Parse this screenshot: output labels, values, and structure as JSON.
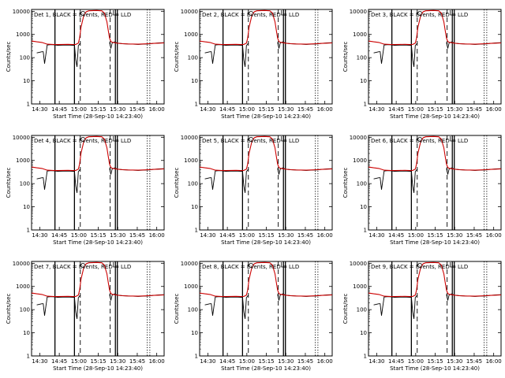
{
  "figure": {
    "xlabel": "Start Time (28-Sep-10 14:23:40)",
    "ylabel": "Counts/sec",
    "xticks": [
      "14:30",
      "14:45",
      "15:00",
      "15:15",
      "15:30",
      "15:45",
      "16:00"
    ],
    "yticks": [
      "1",
      "10",
      "100",
      "1000",
      "10000"
    ],
    "colors": {
      "events": "#000000",
      "lld": "#cc0000"
    }
  },
  "chart_data": {
    "type": "line",
    "y_scale": "log",
    "ylim": [
      1,
      12000
    ],
    "x_unit": "minutes since 14:23:40",
    "xlim": [
      0,
      102
    ],
    "xticks_minutes": [
      6.33,
      21.33,
      36.33,
      51.33,
      66.33,
      81.33,
      96.33
    ],
    "markers": {
      "solid": [
        18,
        33,
        64.5,
        66
      ],
      "dashed": [
        37.5,
        60.5
      ],
      "dotted": [
        89,
        91
      ]
    },
    "series": [
      {
        "name": "BLACK = Events",
        "color": "#000000",
        "x": [
          0,
          2,
          4,
          6,
          8,
          9,
          10,
          12,
          14,
          16,
          18,
          20,
          24,
          28,
          32,
          33,
          34,
          35,
          36,
          37.5,
          41,
          46,
          52,
          56,
          58,
          60,
          61,
          62,
          64,
          66,
          70,
          74,
          78,
          82,
          86,
          90,
          94,
          98,
          102
        ],
        "y": [
          null,
          null,
          160,
          170,
          180,
          180,
          55,
          350,
          360,
          360,
          355,
          340,
          345,
          350,
          340,
          340,
          80,
          40,
          330,
          420,
          null,
          null,
          null,
          null,
          null,
          460,
          250,
          420,
          480,
          420,
          400,
          390,
          380,
          370,
          380,
          390,
          410,
          430,
          440
        ]
      },
      {
        "name": "RED = LLD",
        "color": "#cc0000",
        "x": [
          0,
          4,
          8,
          12,
          16,
          20,
          24,
          28,
          32,
          34,
          36,
          37,
          38,
          40,
          42,
          44,
          50,
          54,
          56,
          58,
          59,
          60,
          61,
          62,
          64,
          66,
          70,
          74,
          78,
          82,
          86,
          90,
          94,
          98,
          102
        ],
        "y": [
          520,
          480,
          450,
          380,
          370,
          365,
          370,
          375,
          365,
          370,
          420,
          700,
          2000,
          6000,
          9500,
          10500,
          10800,
          10500,
          8500,
          3500,
          1500,
          700,
          500,
          460,
          440,
          420,
          400,
          390,
          385,
          380,
          390,
          400,
          410,
          420,
          430
        ]
      }
    ],
    "panels": [
      {
        "title": "Det 1, BLACK = Events, RED = LLD"
      },
      {
        "title": "Det 2, BLACK = Events, RED = LLD"
      },
      {
        "title": "Det 3, BLACK = Events, RED = LLD"
      },
      {
        "title": "Det 4, BLACK = Events, RED = LLD"
      },
      {
        "title": "Det 5, BLACK = Events, RED = LLD"
      },
      {
        "title": "Det 6, BLACK = Events, RED = LLD"
      },
      {
        "title": "Det 7, BLACK = Events, RED = LLD"
      },
      {
        "title": "Det 8, BLACK = Events, RED = LLD"
      },
      {
        "title": "Det 9, BLACK = Events, RED = LLD"
      }
    ]
  }
}
